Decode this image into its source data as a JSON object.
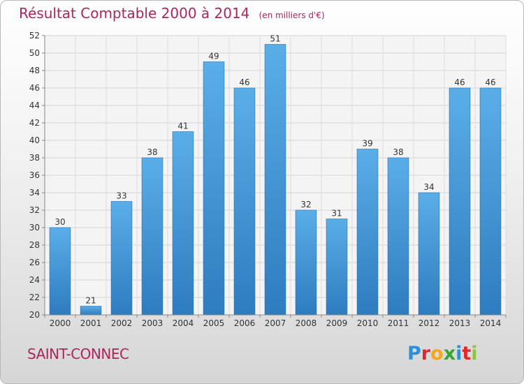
{
  "chart_data": {
    "type": "bar",
    "title": "Résultat Comptable 2000 à 2014",
    "subtitle": "(en milliers d'€)",
    "categories": [
      "2000",
      "2001",
      "2002",
      "2003",
      "2004",
      "2005",
      "2006",
      "2007",
      "2008",
      "2009",
      "2010",
      "2011",
      "2012",
      "2013",
      "2014"
    ],
    "values": [
      30,
      21,
      33,
      38,
      41,
      49,
      46,
      51,
      32,
      31,
      39,
      38,
      34,
      46,
      46
    ],
    "ylim": [
      20,
      52
    ],
    "yticks": [
      20,
      22,
      24,
      26,
      28,
      30,
      32,
      34,
      36,
      38,
      40,
      42,
      44,
      46,
      48,
      50,
      52
    ],
    "grid": true,
    "bar_color": "#3a8fd6"
  },
  "footer": {
    "commune": "SAINT-CONNEC"
  },
  "logo": {
    "text": "Proxiti",
    "letters": [
      {
        "ch": "P",
        "color": "#2e8fd6"
      },
      {
        "ch": "r",
        "color": "#e3262e"
      },
      {
        "ch": "o",
        "color": "#f2a81d"
      },
      {
        "ch": "x",
        "color": "#3aa534"
      },
      {
        "ch": "i",
        "color": "#2e8fd6"
      },
      {
        "ch": "t",
        "color": "#e3262e"
      },
      {
        "ch": "i",
        "color": "#8cc63f"
      }
    ]
  }
}
